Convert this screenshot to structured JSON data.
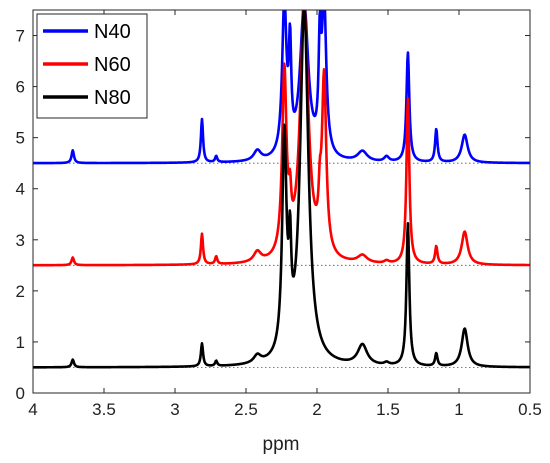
{
  "chart_data": {
    "type": "line",
    "title": "",
    "xlabel": "ppm",
    "ylabel": "",
    "xlim": [
      4,
      0.5
    ],
    "x_reversed": true,
    "ylim": [
      0,
      7.5
    ],
    "xticks": [
      4,
      3.5,
      3,
      2.5,
      2,
      1.5,
      1,
      0.5
    ],
    "xtick_labels": [
      "4",
      "3.5",
      "3",
      "2.5",
      "2",
      "1.5",
      "1",
      "0.5"
    ],
    "yticks": [
      0,
      1,
      2,
      3,
      4,
      5,
      6,
      7
    ],
    "ytick_labels": [
      "0",
      "1",
      "2",
      "3",
      "4",
      "5",
      "6",
      "7"
    ],
    "grid": false,
    "legend_position": "top-left",
    "series": [
      {
        "name": "N40",
        "color": "#0000ff",
        "baseline": 4.5,
        "peaks": [
          {
            "ppm": 3.72,
            "height": 4.75,
            "width": 0.01
          },
          {
            "ppm": 2.81,
            "height": 5.35,
            "width": 0.009
          },
          {
            "ppm": 2.71,
            "height": 4.62,
            "width": 0.009
          },
          {
            "ppm": 2.42,
            "height": 4.7,
            "width": 0.03
          },
          {
            "ppm": 2.23,
            "height": 7.5,
            "width": 0.018
          },
          {
            "ppm": 2.19,
            "height": 6.4,
            "width": 0.01
          },
          {
            "ppm": 2.09,
            "height": 7.5,
            "width": 0.035
          },
          {
            "ppm": 1.98,
            "height": 6.4,
            "width": 0.01
          },
          {
            "ppm": 1.95,
            "height": 7.5,
            "width": 0.018
          },
          {
            "ppm": 1.68,
            "height": 4.7,
            "width": 0.04
          },
          {
            "ppm": 1.51,
            "height": 4.6,
            "width": 0.02
          },
          {
            "ppm": 1.36,
            "height": 6.65,
            "width": 0.012
          },
          {
            "ppm": 1.16,
            "height": 5.15,
            "width": 0.01
          },
          {
            "ppm": 0.96,
            "height": 5.05,
            "width": 0.025
          }
        ]
      },
      {
        "name": "N60",
        "color": "#ff0000",
        "baseline": 2.5,
        "peaks": [
          {
            "ppm": 3.72,
            "height": 2.65,
            "width": 0.01
          },
          {
            "ppm": 2.81,
            "height": 3.1,
            "width": 0.009
          },
          {
            "ppm": 2.71,
            "height": 2.65,
            "width": 0.009
          },
          {
            "ppm": 2.42,
            "height": 2.7,
            "width": 0.03
          },
          {
            "ppm": 2.23,
            "height": 6.1,
            "width": 0.018
          },
          {
            "ppm": 2.19,
            "height": 3.2,
            "width": 0.01
          },
          {
            "ppm": 2.09,
            "height": 7.5,
            "width": 0.035
          },
          {
            "ppm": 1.98,
            "height": 3.2,
            "width": 0.01
          },
          {
            "ppm": 1.95,
            "height": 5.95,
            "width": 0.018
          },
          {
            "ppm": 1.68,
            "height": 2.65,
            "width": 0.04
          },
          {
            "ppm": 1.51,
            "height": 2.55,
            "width": 0.02
          },
          {
            "ppm": 1.36,
            "height": 5.75,
            "width": 0.012
          },
          {
            "ppm": 1.16,
            "height": 2.85,
            "width": 0.01
          },
          {
            "ppm": 0.96,
            "height": 3.15,
            "width": 0.025
          }
        ]
      },
      {
        "name": "N80",
        "color": "#000000",
        "baseline": 0.5,
        "peaks": [
          {
            "ppm": 3.72,
            "height": 0.65,
            "width": 0.01
          },
          {
            "ppm": 2.81,
            "height": 0.95,
            "width": 0.009
          },
          {
            "ppm": 2.71,
            "height": 0.6,
            "width": 0.009
          },
          {
            "ppm": 2.42,
            "height": 0.65,
            "width": 0.03
          },
          {
            "ppm": 2.23,
            "height": 4.75,
            "width": 0.018
          },
          {
            "ppm": 2.19,
            "height": 2.1,
            "width": 0.01
          },
          {
            "ppm": 2.09,
            "height": 7.5,
            "width": 0.035
          },
          {
            "ppm": 1.68,
            "height": 0.9,
            "width": 0.04
          },
          {
            "ppm": 1.51,
            "height": 0.55,
            "width": 0.02
          },
          {
            "ppm": 1.36,
            "height": 3.3,
            "width": 0.012
          },
          {
            "ppm": 1.16,
            "height": 0.75,
            "width": 0.01
          },
          {
            "ppm": 0.96,
            "height": 1.25,
            "width": 0.025
          }
        ]
      }
    ]
  }
}
